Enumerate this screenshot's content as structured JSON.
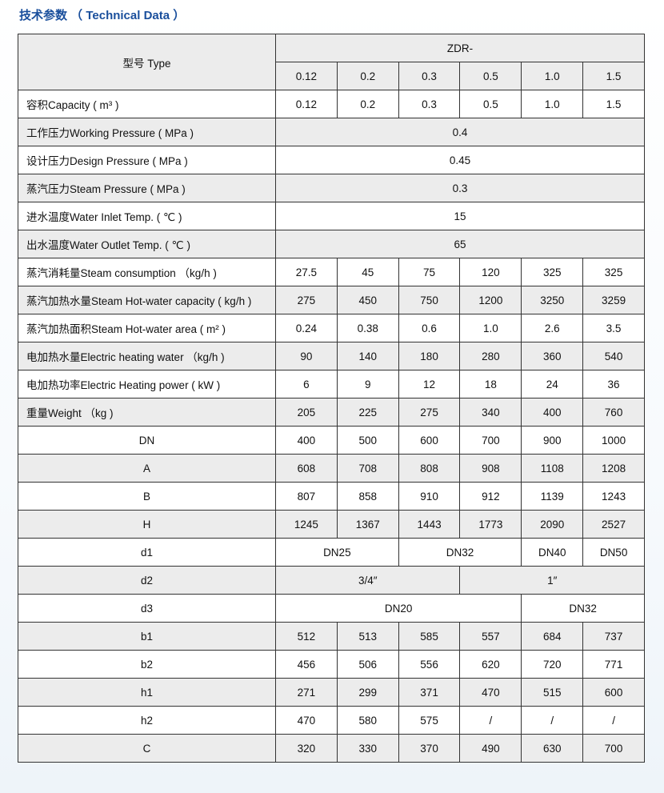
{
  "title": "技术参数 （ Technical Data ）",
  "header": {
    "type_label": "型号 Type",
    "model_prefix": "ZDR-",
    "models": [
      "0.12",
      "0.2",
      "0.3",
      "0.5",
      "1.0",
      "1.5"
    ]
  },
  "rows": [
    {
      "label": "容积Capacity ( m³ )",
      "center": false,
      "cells": [
        {
          "v": "0.12",
          "span": 1
        },
        {
          "v": "0.2",
          "span": 1
        },
        {
          "v": "0.3",
          "span": 1
        },
        {
          "v": "0.5",
          "span": 1
        },
        {
          "v": "1.0",
          "span": 1
        },
        {
          "v": "1.5",
          "span": 1
        }
      ]
    },
    {
      "label": "工作压力Working Pressure ( MPa )",
      "center": false,
      "cells": [
        {
          "v": "0.4",
          "span": 6
        }
      ]
    },
    {
      "label": "设计压力Design Pressure ( MPa )",
      "center": false,
      "cells": [
        {
          "v": "0.45",
          "span": 6
        }
      ]
    },
    {
      "label": "蒸汽压力Steam Pressure ( MPa )",
      "center": false,
      "cells": [
        {
          "v": "0.3",
          "span": 6
        }
      ]
    },
    {
      "label": "进水温度Water Inlet Temp. ( ℃ )",
      "center": false,
      "cells": [
        {
          "v": "15",
          "span": 6
        }
      ]
    },
    {
      "label": "出水温度Water Outlet Temp. ( ℃ )",
      "center": false,
      "cells": [
        {
          "v": "65",
          "span": 6
        }
      ]
    },
    {
      "label": "蒸汽消耗量Steam consumption （kg/h )",
      "center": false,
      "cells": [
        {
          "v": "27.5",
          "span": 1
        },
        {
          "v": "45",
          "span": 1
        },
        {
          "v": "75",
          "span": 1
        },
        {
          "v": "120",
          "span": 1
        },
        {
          "v": "325",
          "span": 1
        },
        {
          "v": "325",
          "span": 1
        }
      ]
    },
    {
      "label": "蒸汽加热水量Steam Hot-water capacity ( kg/h )",
      "center": false,
      "cells": [
        {
          "v": "275",
          "span": 1
        },
        {
          "v": "450",
          "span": 1
        },
        {
          "v": "750",
          "span": 1
        },
        {
          "v": "1200",
          "span": 1
        },
        {
          "v": "3250",
          "span": 1
        },
        {
          "v": "3259",
          "span": 1
        }
      ]
    },
    {
      "label": "蒸汽加热面积Steam Hot-water area ( m² )",
      "center": false,
      "cells": [
        {
          "v": "0.24",
          "span": 1
        },
        {
          "v": "0.38",
          "span": 1
        },
        {
          "v": "0.6",
          "span": 1
        },
        {
          "v": "1.0",
          "span": 1
        },
        {
          "v": "2.6",
          "span": 1
        },
        {
          "v": "3.5",
          "span": 1
        }
      ]
    },
    {
      "label": "电加热水量Electric heating water （kg/h )",
      "center": false,
      "cells": [
        {
          "v": "90",
          "span": 1
        },
        {
          "v": "140",
          "span": 1
        },
        {
          "v": "180",
          "span": 1
        },
        {
          "v": "280",
          "span": 1
        },
        {
          "v": "360",
          "span": 1
        },
        {
          "v": "540",
          "span": 1
        }
      ]
    },
    {
      "label": "电加热功率Electric Heating power ( kW )",
      "center": false,
      "cells": [
        {
          "v": "6",
          "span": 1
        },
        {
          "v": "9",
          "span": 1
        },
        {
          "v": "12",
          "span": 1
        },
        {
          "v": "18",
          "span": 1
        },
        {
          "v": "24",
          "span": 1
        },
        {
          "v": "36",
          "span": 1
        }
      ]
    },
    {
      "label": "重量Weight （kg )",
      "center": false,
      "cells": [
        {
          "v": "205",
          "span": 1
        },
        {
          "v": "225",
          "span": 1
        },
        {
          "v": "275",
          "span": 1
        },
        {
          "v": "340",
          "span": 1
        },
        {
          "v": "400",
          "span": 1
        },
        {
          "v": "760",
          "span": 1
        }
      ]
    },
    {
      "label": "DN",
      "center": true,
      "cells": [
        {
          "v": "400",
          "span": 1
        },
        {
          "v": "500",
          "span": 1
        },
        {
          "v": "600",
          "span": 1
        },
        {
          "v": "700",
          "span": 1
        },
        {
          "v": "900",
          "span": 1
        },
        {
          "v": "1000",
          "span": 1
        }
      ]
    },
    {
      "label": "A",
      "center": true,
      "cells": [
        {
          "v": "608",
          "span": 1
        },
        {
          "v": "708",
          "span": 1
        },
        {
          "v": "808",
          "span": 1
        },
        {
          "v": "908",
          "span": 1
        },
        {
          "v": "1108",
          "span": 1
        },
        {
          "v": "1208",
          "span": 1
        }
      ]
    },
    {
      "label": "B",
      "center": true,
      "cells": [
        {
          "v": "807",
          "span": 1
        },
        {
          "v": "858",
          "span": 1
        },
        {
          "v": "910",
          "span": 1
        },
        {
          "v": "912",
          "span": 1
        },
        {
          "v": "1139",
          "span": 1
        },
        {
          "v": "1243",
          "span": 1
        }
      ]
    },
    {
      "label": "H",
      "center": true,
      "cells": [
        {
          "v": "1245",
          "span": 1
        },
        {
          "v": "1367",
          "span": 1
        },
        {
          "v": "1443",
          "span": 1
        },
        {
          "v": "1773",
          "span": 1
        },
        {
          "v": "2090",
          "span": 1
        },
        {
          "v": "2527",
          "span": 1
        }
      ]
    },
    {
      "label": "d1",
      "center": true,
      "cells": [
        {
          "v": "DN25",
          "span": 2
        },
        {
          "v": "DN32",
          "span": 2
        },
        {
          "v": "DN40",
          "span": 1
        },
        {
          "v": "DN50",
          "span": 1
        }
      ]
    },
    {
      "label": "d2",
      "center": true,
      "cells": [
        {
          "v": "3/4″",
          "span": 3
        },
        {
          "v": "1″",
          "span": 3
        }
      ]
    },
    {
      "label": "d3",
      "center": true,
      "cells": [
        {
          "v": "DN20",
          "span": 4
        },
        {
          "v": "DN32",
          "span": 2
        }
      ]
    },
    {
      "label": "b1",
      "center": true,
      "cells": [
        {
          "v": "512",
          "span": 1
        },
        {
          "v": "513",
          "span": 1
        },
        {
          "v": "585",
          "span": 1
        },
        {
          "v": "557",
          "span": 1
        },
        {
          "v": "684",
          "span": 1
        },
        {
          "v": "737",
          "span": 1
        }
      ]
    },
    {
      "label": "b2",
      "center": true,
      "cells": [
        {
          "v": "456",
          "span": 1
        },
        {
          "v": "506",
          "span": 1
        },
        {
          "v": "556",
          "span": 1
        },
        {
          "v": "620",
          "span": 1
        },
        {
          "v": "720",
          "span": 1
        },
        {
          "v": "771",
          "span": 1
        }
      ]
    },
    {
      "label": "h1",
      "center": true,
      "cells": [
        {
          "v": "271",
          "span": 1
        },
        {
          "v": "299",
          "span": 1
        },
        {
          "v": "371",
          "span": 1
        },
        {
          "v": "470",
          "span": 1
        },
        {
          "v": "515",
          "span": 1
        },
        {
          "v": "600",
          "span": 1
        }
      ]
    },
    {
      "label": "h2",
      "center": true,
      "cells": [
        {
          "v": "470",
          "span": 1
        },
        {
          "v": "580",
          "span": 1
        },
        {
          "v": "575",
          "span": 1
        },
        {
          "v": "/",
          "span": 1
        },
        {
          "v": "/",
          "span": 1
        },
        {
          "v": "/",
          "span": 1
        }
      ]
    },
    {
      "label": "C",
      "center": true,
      "cells": [
        {
          "v": "320",
          "span": 1
        },
        {
          "v": "330",
          "span": 1
        },
        {
          "v": "370",
          "span": 1
        },
        {
          "v": "490",
          "span": 1
        },
        {
          "v": "630",
          "span": 1
        },
        {
          "v": "700",
          "span": 1
        }
      ]
    }
  ]
}
